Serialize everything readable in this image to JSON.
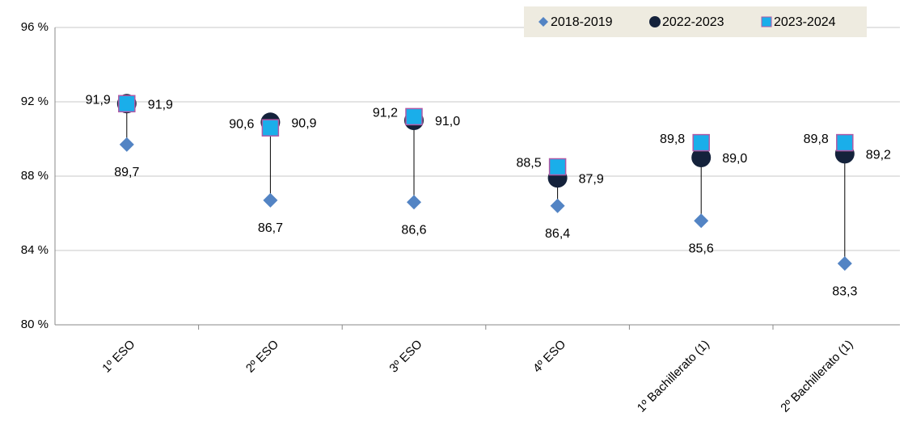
{
  "chart_data": {
    "type": "dot",
    "categories": [
      "1º ESO",
      "2º ESO",
      "3º ESO",
      "4º ESO",
      "1º Bachillerato (1)",
      "2º Bachillerato (1)"
    ],
    "series": [
      {
        "name": "2018-2019",
        "color": "#5384c4",
        "marker": "diamond",
        "values": [
          89.7,
          86.7,
          86.6,
          86.4,
          85.6,
          83.3
        ],
        "value_labels": [
          "89,7",
          "86,7",
          "86,6",
          "86,4",
          "85,6",
          "83,3"
        ]
      },
      {
        "name": "2022-2023",
        "color": "#14223b",
        "marker": "circle",
        "values": [
          91.9,
          90.9,
          91.0,
          87.9,
          89.0,
          89.2
        ],
        "value_labels": [
          "91,9",
          "90,9",
          "91,0",
          "87,9",
          "89,0",
          "89,2"
        ]
      },
      {
        "name": "2023-2024",
        "color": "#1aaeea",
        "marker": "square",
        "values": [
          91.9,
          90.6,
          91.2,
          88.5,
          89.8,
          89.8
        ],
        "value_labels": [
          "91,9",
          "90,6",
          "91,2",
          "88,5",
          "89,8",
          "89,8"
        ]
      }
    ],
    "ylim": [
      80,
      96
    ],
    "yticks": [
      {
        "value": 80,
        "label": "80 %"
      },
      {
        "value": 84,
        "label": "84 %"
      },
      {
        "value": 88,
        "label": "88 %"
      },
      {
        "value": 92,
        "label": "92 %"
      },
      {
        "value": 96,
        "label": "96 %"
      }
    ],
    "grid": true,
    "legend": "top-right"
  }
}
